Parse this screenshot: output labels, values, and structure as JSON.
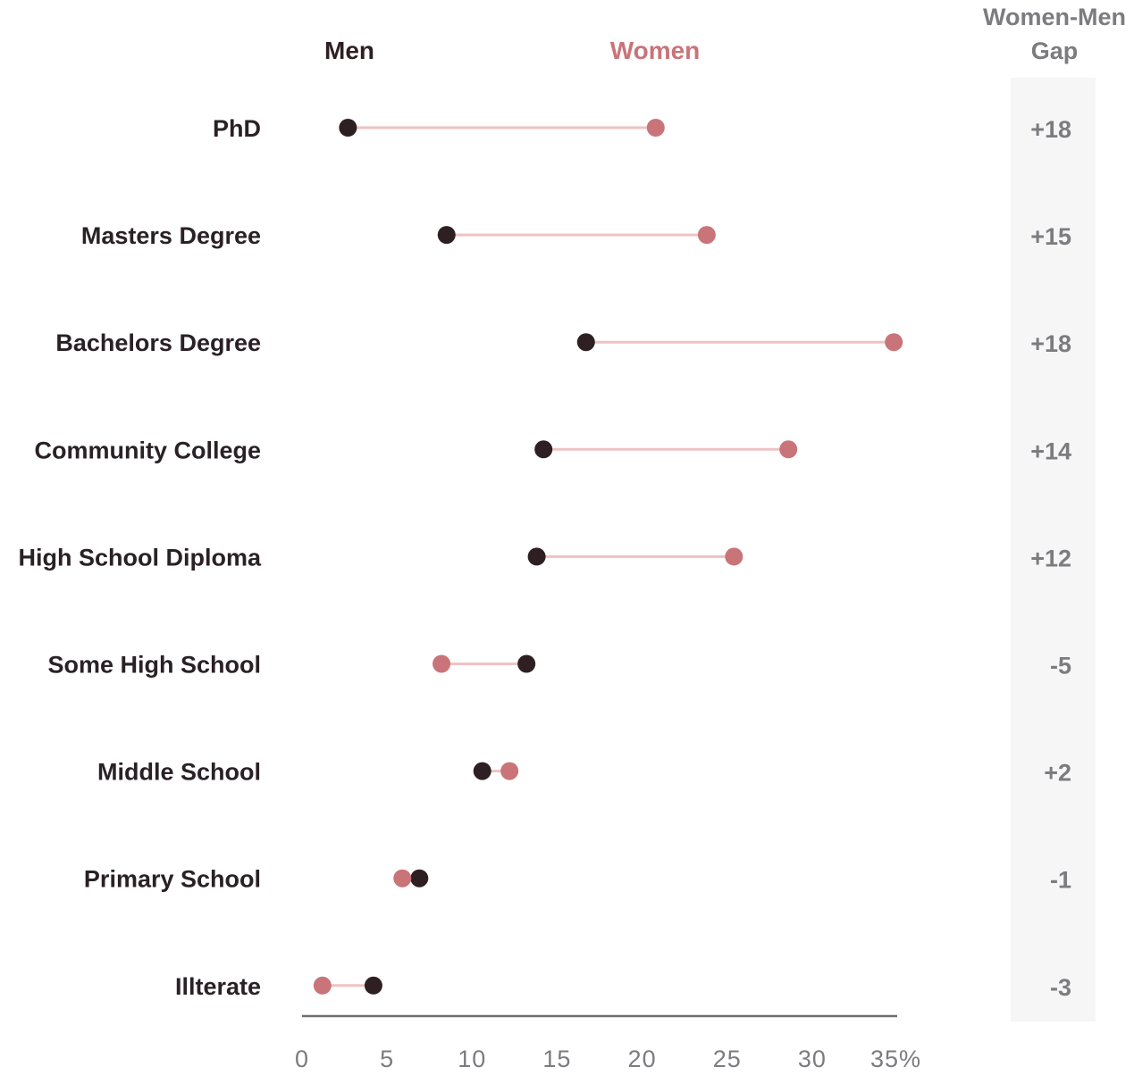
{
  "chart_data": {
    "type": "dumbbell",
    "title": "",
    "xlabel": "",
    "ylabel": "",
    "xlim": [
      0,
      35
    ],
    "x_ticks": [
      "0",
      "5",
      "10",
      "15",
      "20",
      "25",
      "30",
      "35%"
    ],
    "grid": false,
    "legend": {
      "placement": "top",
      "entries": [
        "Men",
        "Women"
      ]
    },
    "series": [
      {
        "name": "Men",
        "color": "#2e1f22"
      },
      {
        "name": "Women",
        "color": "#c97478"
      }
    ],
    "gap_header": [
      "Women-Men",
      "Gap"
    ],
    "rows": [
      {
        "category": "PhD",
        "men": 2.7,
        "women": 20.8,
        "gap": "+18"
      },
      {
        "category": "Masters Degree",
        "men": 8.5,
        "women": 23.8,
        "gap": "+15"
      },
      {
        "category": "Bachelors Degree",
        "men": 16.7,
        "women": 34.8,
        "gap": "+18"
      },
      {
        "category": "Community College",
        "men": 14.2,
        "women": 28.6,
        "gap": "+14"
      },
      {
        "category": "High School Diploma",
        "men": 13.8,
        "women": 25.4,
        "gap": "+12"
      },
      {
        "category": "Some High School",
        "men": 13.2,
        "women": 8.2,
        "gap": "-5"
      },
      {
        "category": "Middle School",
        "men": 10.6,
        "women": 12.2,
        "gap": "+2"
      },
      {
        "category": "Primary School",
        "men": 6.9,
        "women": 5.9,
        "gap": "-1"
      },
      {
        "category": "Illterate",
        "men": 4.2,
        "women": 1.2,
        "gap": "-3"
      }
    ],
    "colors": {
      "connector": "#efc2c3",
      "axis": "#6e6e72",
      "gap_band": "#f6f6f6",
      "label": "#2a2126",
      "muted": "#7c7c80"
    }
  }
}
